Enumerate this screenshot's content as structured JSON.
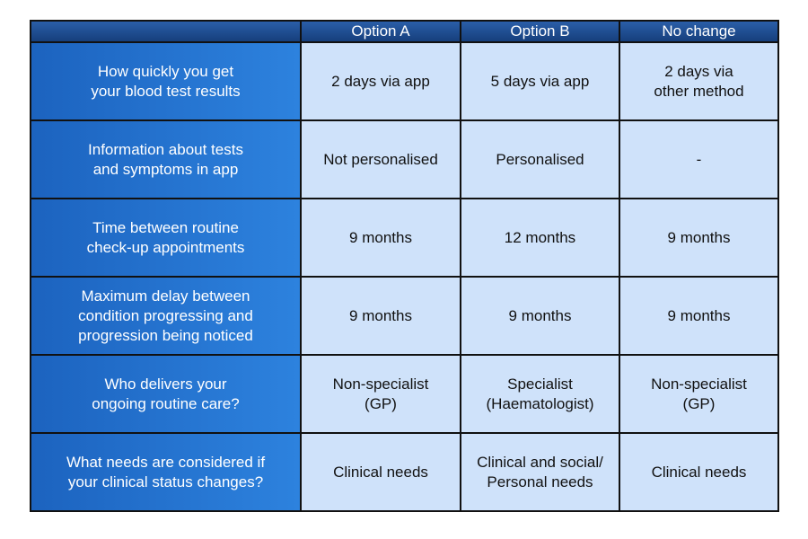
{
  "table": {
    "header": [
      "Option A",
      "Option B",
      "No change"
    ],
    "rows": [
      {
        "label": [
          "How quickly you get",
          "your blood test results"
        ],
        "cells": [
          [
            "2 days via app"
          ],
          [
            "5 days via app"
          ],
          [
            "2 days via",
            "other method"
          ]
        ]
      },
      {
        "label": [
          "Information about tests",
          "and symptoms in app"
        ],
        "cells": [
          [
            "Not personalised"
          ],
          [
            "Personalised"
          ],
          [
            "-"
          ]
        ]
      },
      {
        "label": [
          "Time between routine",
          "check-up appointments"
        ],
        "cells": [
          [
            "9 months"
          ],
          [
            "12 months"
          ],
          [
            "9 months"
          ]
        ]
      },
      {
        "label": [
          "Maximum delay between",
          "condition progressing and",
          "progression being noticed"
        ],
        "cells": [
          [
            "9 months"
          ],
          [
            "9 months"
          ],
          [
            "9 months"
          ]
        ]
      },
      {
        "label": [
          "Who delivers your",
          "ongoing routine care?"
        ],
        "cells": [
          [
            "Non-specialist",
            "(GP)"
          ],
          [
            "Specialist",
            "(Haematologist)"
          ],
          [
            "Non-specialist",
            "(GP)"
          ]
        ]
      },
      {
        "label": [
          "What needs are considered if",
          "your clinical status changes?"
        ],
        "cells": [
          [
            "Clinical needs"
          ],
          [
            "Clinical and social/",
            "Personal needs"
          ],
          [
            "Clinical needs"
          ]
        ]
      }
    ]
  }
}
